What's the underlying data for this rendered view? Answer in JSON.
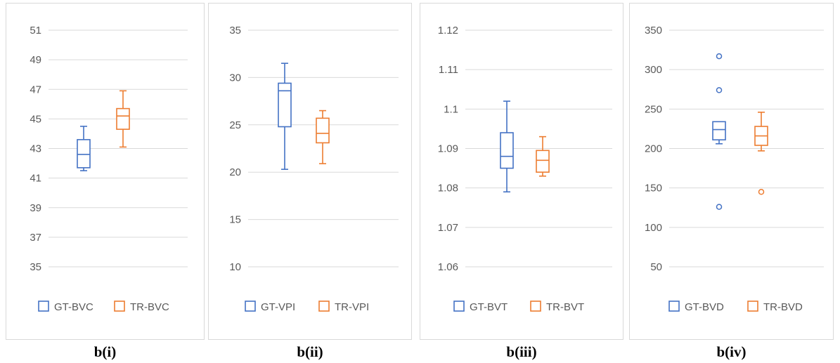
{
  "colors": {
    "series1": "#4472c4",
    "series2": "#ed7d31",
    "grid": "#d9d9d9",
    "text": "#595959"
  },
  "chart_data": [
    {
      "type": "box",
      "caption": "b(i)",
      "ylim": [
        35,
        51
      ],
      "yticks": [
        35,
        37,
        39,
        41,
        43,
        45,
        47,
        49,
        51
      ],
      "tick_decimals": 0,
      "grid": true,
      "legend_position": "bottom",
      "series": [
        {
          "name": "GT-BVC",
          "color": "#4472c4",
          "min": 41.5,
          "q1": 41.7,
          "median": 42.6,
          "q3": 43.6,
          "max": 44.5,
          "outliers": []
        },
        {
          "name": "TR-BVC",
          "color": "#ed7d31",
          "min": 43.1,
          "q1": 44.3,
          "median": 45.2,
          "q3": 45.7,
          "max": 46.9,
          "outliers": []
        }
      ]
    },
    {
      "type": "box",
      "caption": "b(ii)",
      "ylim": [
        10,
        35
      ],
      "yticks": [
        10,
        15,
        20,
        25,
        30,
        35
      ],
      "tick_decimals": 0,
      "grid": true,
      "legend_position": "bottom",
      "series": [
        {
          "name": "GT-VPI",
          "color": "#4472c4",
          "min": 20.3,
          "q1": 24.8,
          "median": 28.6,
          "q3": 29.4,
          "max": 31.5,
          "outliers": []
        },
        {
          "name": "TR-VPI",
          "color": "#ed7d31",
          "min": 20.9,
          "q1": 23.1,
          "median": 24.1,
          "q3": 25.7,
          "max": 26.5,
          "outliers": []
        }
      ]
    },
    {
      "type": "box",
      "caption": "b(iii)",
      "ylim": [
        1.06,
        1.12
      ],
      "yticks": [
        1.06,
        1.07,
        1.08,
        1.09,
        1.1,
        1.11,
        1.12
      ],
      "tick_labels": [
        "1.06",
        "1.07",
        "1.08",
        "1.09",
        "1.1",
        "1.11",
        "1.12"
      ],
      "tick_decimals": 2,
      "grid": true,
      "legend_position": "bottom",
      "series": [
        {
          "name": "GT-BVT",
          "color": "#4472c4",
          "min": 1.079,
          "q1": 1.085,
          "median": 1.088,
          "q3": 1.094,
          "max": 1.102,
          "outliers": []
        },
        {
          "name": "TR-BVT",
          "color": "#ed7d31",
          "min": 1.083,
          "q1": 1.084,
          "median": 1.087,
          "q3": 1.0895,
          "max": 1.093,
          "outliers": []
        }
      ]
    },
    {
      "type": "box",
      "caption": "b(iv)",
      "ylim": [
        50,
        350
      ],
      "yticks": [
        50,
        100,
        150,
        200,
        250,
        300,
        350
      ],
      "tick_decimals": 0,
      "grid": true,
      "legend_position": "bottom",
      "series": [
        {
          "name": "GT-BVD",
          "color": "#4472c4",
          "min": 206,
          "q1": 211,
          "median": 224,
          "q3": 234,
          "max": 234,
          "outliers": [
            317,
            274,
            126
          ]
        },
        {
          "name": "TR-BVD",
          "color": "#ed7d31",
          "min": 197,
          "q1": 204,
          "median": 216,
          "q3": 228,
          "max": 246,
          "outliers": [
            145
          ]
        }
      ]
    }
  ]
}
